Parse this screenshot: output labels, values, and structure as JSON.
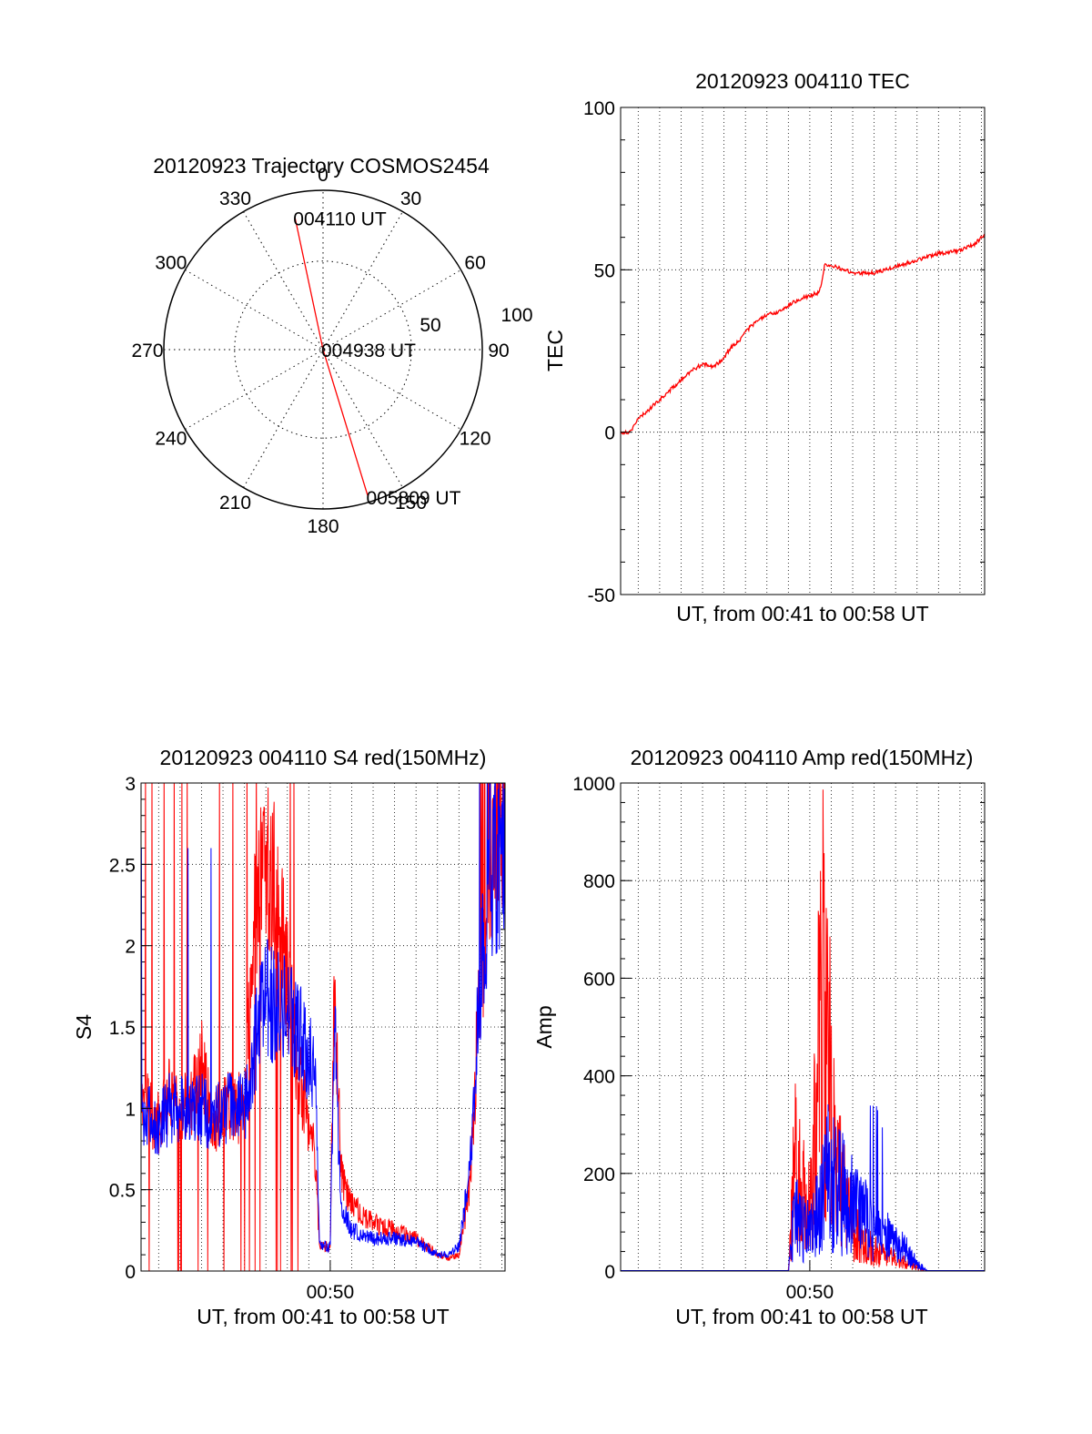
{
  "chart_data": [
    {
      "type": "polar-trajectory",
      "title": "20120923 Trajectory COSMOS2454",
      "angle_labels": [
        "0",
        "30",
        "60",
        "90",
        "120",
        "150",
        "180",
        "210",
        "240",
        "270",
        "300",
        "330"
      ],
      "radial_labels": [
        "50",
        "100"
      ],
      "rmax": 90,
      "series": [
        {
          "color": "#ff0000",
          "points": [
            {
              "az": 348,
              "el": 14
            },
            {
              "az": 100,
              "el": 90
            },
            {
              "az": 163,
              "el": 3
            }
          ]
        }
      ],
      "annotations": [
        {
          "text": "004110 UT",
          "az": 348,
          "el": 14
        },
        {
          "text": "004938 UT",
          "az": 100,
          "el": 90
        },
        {
          "text": "005809 UT",
          "az": 163,
          "el": 3
        }
      ]
    },
    {
      "type": "line",
      "title": "20120923 004110 TEC",
      "xlabel": "UT, from 00:41 to 00:58 UT",
      "ylabel": "TEC",
      "xlim": [
        41.18,
        58.15
      ],
      "ylim": [
        -50,
        100
      ],
      "yticks": [
        -50,
        0,
        50,
        100
      ],
      "yticklabels": [
        "-50",
        "0",
        "50",
        "100"
      ],
      "grid": true,
      "series": [
        {
          "color": "#ff0000",
          "x": [
            41.18,
            41.6,
            42.0,
            42.5,
            43.0,
            43.5,
            44.0,
            44.5,
            45.0,
            45.5,
            46.0,
            46.3,
            46.7,
            47.0,
            47.5,
            48.0,
            48.5,
            49.0,
            49.5,
            50.0,
            50.4,
            50.6,
            50.7,
            50.8,
            51.2,
            52.0,
            53.0,
            54.0,
            55.0,
            56.0,
            57.0,
            57.7,
            58.15
          ],
          "y": [
            0,
            0,
            4,
            7,
            10,
            13,
            16,
            19,
            21,
            20,
            23,
            26,
            28,
            31,
            34,
            36,
            37,
            39,
            41,
            42,
            43,
            47,
            52,
            51,
            51,
            49,
            49,
            51,
            53,
            55,
            56,
            58,
            61
          ]
        }
      ]
    },
    {
      "type": "line",
      "title": "20120923 004110 S4 red(150MHz)",
      "xlabel": "UT, from 00:41 to 00:58 UT",
      "ylabel": "S4",
      "xlim": [
        41.18,
        58.15
      ],
      "ylim": [
        0,
        3
      ],
      "yticks": [
        0,
        0.5,
        1,
        1.5,
        2,
        2.5,
        3
      ],
      "yticklabels": [
        "0",
        "0.5",
        "1",
        "1.5",
        "2",
        "2.5",
        "3"
      ],
      "xticks": [
        50
      ],
      "xticklabels": [
        "00:50"
      ],
      "grid": true,
      "series": [
        {
          "color": "#ff0000",
          "x": [
            41.2,
            41.5,
            42.0,
            42.5,
            43.0,
            43.5,
            44.0,
            44.5,
            45.0,
            45.5,
            46.0,
            46.5,
            47.0,
            47.5,
            48.0,
            48.5,
            49.0,
            49.3,
            49.5,
            49.8,
            50.0,
            50.2,
            50.5,
            51.0,
            52.0,
            53.0,
            54.0,
            55.0,
            55.5,
            56.0,
            56.5,
            57.0,
            57.5,
            58.1
          ],
          "y": [
            1.2,
            1.0,
            0.9,
            1.1,
            1.0,
            1.0,
            1.3,
            0.9,
            1.0,
            1.0,
            1.0,
            2.2,
            2.5,
            2.4,
            1.8,
            1.2,
            0.9,
            0.7,
            0.15,
            0.15,
            0.15,
            1.8,
            0.6,
            0.4,
            0.3,
            0.25,
            0.2,
            0.1,
            0.08,
            0.1,
            0.5,
            1.8,
            2.5,
            2.8
          ]
        },
        {
          "color": "#0000ff",
          "x": [
            41.2,
            41.5,
            42.0,
            42.5,
            43.0,
            43.5,
            44.0,
            44.5,
            45.0,
            45.5,
            46.0,
            46.5,
            47.0,
            47.5,
            48.0,
            48.5,
            49.0,
            49.3,
            49.5,
            49.8,
            50.0,
            50.2,
            50.5,
            51.0,
            52.0,
            53.0,
            54.0,
            55.0,
            55.5,
            56.0,
            56.5,
            57.0,
            57.5,
            58.1
          ],
          "y": [
            1.0,
            0.95,
            0.9,
            1.0,
            1.0,
            1.0,
            1.0,
            0.9,
            1.0,
            1.0,
            1.0,
            1.4,
            1.7,
            1.6,
            1.6,
            1.5,
            1.3,
            1.2,
            0.15,
            0.15,
            0.15,
            1.5,
            0.4,
            0.25,
            0.2,
            0.2,
            0.18,
            0.1,
            0.1,
            0.15,
            0.6,
            1.8,
            2.4,
            2.6
          ]
        }
      ]
    },
    {
      "type": "line",
      "title": "20120923 004110 Amp red(150MHz)",
      "xlabel": "UT, from 00:41 to 00:58 UT",
      "ylabel": "Amp",
      "xlim": [
        41.18,
        58.15
      ],
      "ylim": [
        0,
        1000
      ],
      "yticks": [
        0,
        200,
        400,
        600,
        800,
        1000
      ],
      "yticklabels": [
        "0",
        "200",
        "400",
        "600",
        "800",
        "1000"
      ],
      "xticks": [
        50
      ],
      "xticklabels": [
        "00:50"
      ],
      "grid": true,
      "series": [
        {
          "color": "#ff0000",
          "x": [
            41.18,
            49.0,
            49.3,
            49.6,
            50.0,
            50.3,
            50.6,
            50.9,
            51.2,
            51.5,
            51.8,
            52.2,
            52.6,
            53.0,
            53.5,
            54.0,
            54.5,
            55.0,
            55.5,
            58.15
          ],
          "y": [
            0,
            0,
            280,
            200,
            150,
            380,
            700,
            500,
            300,
            200,
            150,
            100,
            70,
            50,
            40,
            30,
            20,
            10,
            0,
            0
          ]
        },
        {
          "color": "#0000ff",
          "x": [
            41.18,
            49.0,
            49.3,
            49.6,
            50.0,
            50.3,
            50.6,
            50.9,
            51.2,
            51.5,
            51.8,
            52.2,
            52.6,
            53.0,
            53.5,
            54.0,
            54.5,
            55.0,
            55.5,
            58.15
          ],
          "y": [
            0,
            0,
            150,
            120,
            100,
            150,
            200,
            250,
            230,
            200,
            180,
            150,
            130,
            110,
            90,
            70,
            50,
            20,
            0,
            0
          ]
        }
      ]
    }
  ]
}
